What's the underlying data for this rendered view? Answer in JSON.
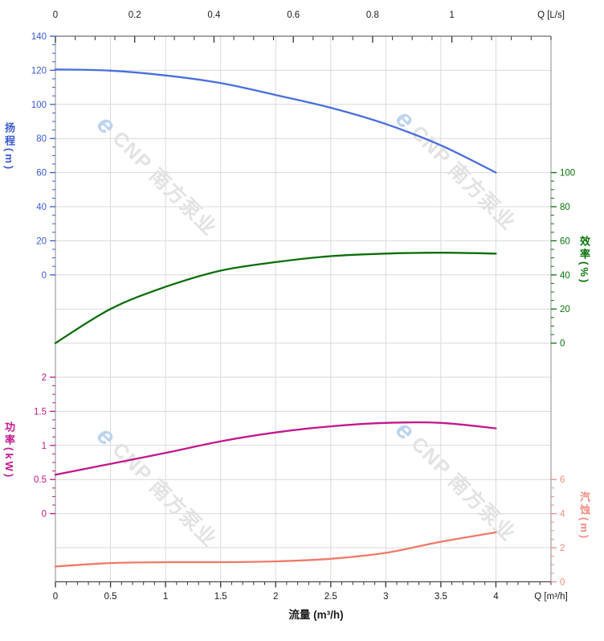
{
  "chart_data": {
    "type": "line",
    "title": "",
    "grid": true,
    "legend": false,
    "x_axis_bottom": {
      "title": "流量 (m³/h)",
      "end_label": "Q [m³/h]",
      "range": [
        0,
        4.5
      ],
      "major_ticks": [
        0,
        0.5,
        1,
        1.5,
        2,
        2.5,
        3,
        3.5,
        4
      ],
      "minor_step": 0.1,
      "color": "#1a1a1a"
    },
    "x_axis_top": {
      "end_label": "Q [L/s]",
      "range": [
        0,
        1.25
      ],
      "major_ticks": [
        0,
        0.2,
        0.4,
        0.6,
        0.8,
        1
      ],
      "minor_step": 0.05,
      "color": "#1a1a1a"
    },
    "y_axes": [
      {
        "id": "head",
        "title": "扬程(m)",
        "side": "left",
        "range": [
          0,
          140
        ],
        "ticks": [
          140,
          120,
          100,
          80,
          60,
          40,
          20,
          0
        ],
        "minor_step": 5,
        "color": "#3a5bd0"
      },
      {
        "id": "eff",
        "title": "效率(%)",
        "side": "right",
        "range": [
          0,
          100
        ],
        "ticks": [
          100,
          80,
          60,
          40,
          20,
          0
        ],
        "minor_step": 5,
        "color": "#077307"
      },
      {
        "id": "pow",
        "title": "功率(kW)",
        "side": "left",
        "range": [
          0,
          2
        ],
        "ticks": [
          2,
          1.5,
          1,
          0.5,
          0
        ],
        "minor_step": 0.125,
        "color": "#c2188c"
      },
      {
        "id": "npsh",
        "title": "汽蚀(m)",
        "side": "right",
        "range": [
          0,
          6
        ],
        "ticks": [
          6,
          4,
          2,
          0
        ],
        "minor_step": 0.5,
        "color": "#f28b80"
      }
    ],
    "series": [
      {
        "name": "head",
        "axis": "head",
        "color": "#4a6edb",
        "x": [
          0,
          0.5,
          1,
          1.5,
          2,
          2.5,
          3,
          3.5,
          4
        ],
        "values": [
          120.5,
          119.8,
          117,
          112.5,
          105.5,
          98,
          88.5,
          76,
          60
        ]
      },
      {
        "name": "efficiency",
        "axis": "eff",
        "color": "#0b6e0b",
        "x": [
          0,
          0.5,
          1,
          1.5,
          2,
          2.5,
          3,
          3.5,
          4
        ],
        "values": [
          0,
          20,
          33,
          42.5,
          47.5,
          51,
          52.5,
          53,
          52.5
        ]
      },
      {
        "name": "power",
        "axis": "pow",
        "color": "#c2188c",
        "x": [
          0,
          0.5,
          1,
          1.5,
          2,
          2.5,
          3,
          3.5,
          4
        ],
        "values": [
          0.57,
          0.73,
          0.89,
          1.06,
          1.19,
          1.28,
          1.33,
          1.33,
          1.25
        ]
      },
      {
        "name": "npsh",
        "axis": "npsh",
        "color": "#f0796b",
        "x": [
          0,
          0.5,
          1,
          1.5,
          2,
          2.5,
          3,
          3.5,
          4
        ],
        "values": [
          0.9,
          1.1,
          1.15,
          1.15,
          1.2,
          1.35,
          1.7,
          2.35,
          2.9
        ]
      }
    ]
  },
  "watermark": {
    "logo_glyph": "e",
    "text": "CNP 南方泵业",
    "text_color": "#e2e2e2",
    "logo_color": "#bcd4ee"
  }
}
